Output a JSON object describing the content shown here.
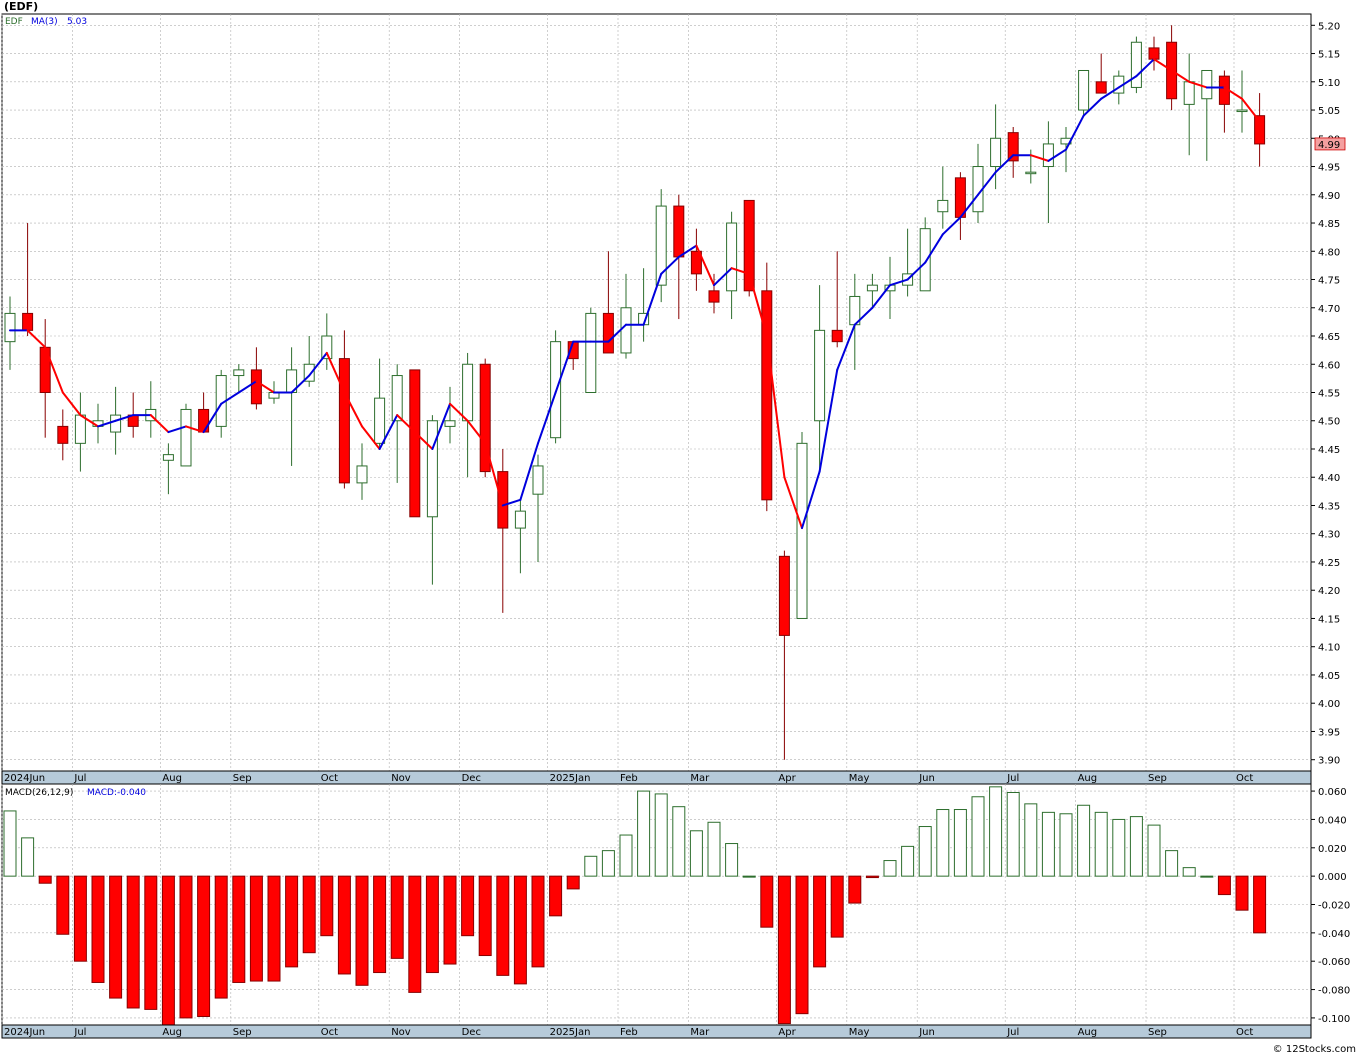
{
  "title": "(EDF)",
  "credit": "© 12Stocks.com",
  "colors": {
    "up": "#2d6e2d",
    "down": "#ff0000",
    "ma_up": "#0000dd",
    "ma_down": "#ff0000",
    "grid": "#b0b0b0",
    "axis_bg": "#b6cad9",
    "price_badge": "#f4a0a0"
  },
  "chart_data": [
    {
      "type": "candlestick",
      "symbol_label": "EDF",
      "ma_label": "MA(3)",
      "ma_value": "5.03",
      "last_price_label": "4.99",
      "ylim": [
        3.88,
        5.22
      ],
      "y_ticks": [
        "5.20",
        "5.15",
        "5.10",
        "5.05",
        "5.00",
        "4.95",
        "4.90",
        "4.85",
        "4.80",
        "4.75",
        "4.70",
        "4.65",
        "4.60",
        "4.55",
        "4.50",
        "4.45",
        "4.40",
        "4.35",
        "4.30",
        "4.25",
        "4.20",
        "4.15",
        "4.10",
        "4.05",
        "4.00",
        "3.95",
        "3.90"
      ],
      "x_labels": [
        {
          "label": "2024Jun",
          "week": 0
        },
        {
          "label": "Jul",
          "week": 4
        },
        {
          "label": "Aug",
          "week": 9
        },
        {
          "label": "Sep",
          "week": 13
        },
        {
          "label": "Oct",
          "week": 18
        },
        {
          "label": "Nov",
          "week": 22
        },
        {
          "label": "Dec",
          "week": 26
        },
        {
          "label": "2025Jan",
          "week": 31
        },
        {
          "label": "Feb",
          "week": 35
        },
        {
          "label": "Mar",
          "week": 39
        },
        {
          "label": "Apr",
          "week": 44
        },
        {
          "label": "May",
          "week": 48
        },
        {
          "label": "Jun",
          "week": 52
        },
        {
          "label": "Jul",
          "week": 57
        },
        {
          "label": "Aug",
          "week": 61
        },
        {
          "label": "Sep",
          "week": 65
        },
        {
          "label": "Oct",
          "week": 70
        }
      ],
      "candles": [
        {
          "o": 4.64,
          "h": 4.72,
          "l": 4.59,
          "c": 4.69
        },
        {
          "o": 4.69,
          "h": 4.85,
          "l": 4.65,
          "c": 4.66
        },
        {
          "o": 4.63,
          "h": 4.68,
          "l": 4.47,
          "c": 4.55
        },
        {
          "o": 4.49,
          "h": 4.52,
          "l": 4.43,
          "c": 4.46
        },
        {
          "o": 4.46,
          "h": 4.55,
          "l": 4.41,
          "c": 4.51
        },
        {
          "o": 4.49,
          "h": 4.53,
          "l": 4.46,
          "c": 4.5
        },
        {
          "o": 4.48,
          "h": 4.56,
          "l": 4.44,
          "c": 4.51
        },
        {
          "o": 4.51,
          "h": 4.55,
          "l": 4.47,
          "c": 4.49
        },
        {
          "o": 4.5,
          "h": 4.57,
          "l": 4.47,
          "c": 4.52
        },
        {
          "o": 4.43,
          "h": 4.46,
          "l": 4.37,
          "c": 4.44
        },
        {
          "o": 4.42,
          "h": 4.53,
          "l": 4.42,
          "c": 4.52
        },
        {
          "o": 4.52,
          "h": 4.55,
          "l": 4.48,
          "c": 4.48
        },
        {
          "o": 4.49,
          "h": 4.59,
          "l": 4.47,
          "c": 4.58
        },
        {
          "o": 4.58,
          "h": 4.6,
          "l": 4.55,
          "c": 4.59
        },
        {
          "o": 4.59,
          "h": 4.63,
          "l": 4.52,
          "c": 4.53
        },
        {
          "o": 4.54,
          "h": 4.57,
          "l": 4.53,
          "c": 4.55
        },
        {
          "o": 4.55,
          "h": 4.63,
          "l": 4.42,
          "c": 4.59
        },
        {
          "o": 4.57,
          "h": 4.65,
          "l": 4.56,
          "c": 4.6
        },
        {
          "o": 4.61,
          "h": 4.69,
          "l": 4.59,
          "c": 4.65
        },
        {
          "o": 4.61,
          "h": 4.66,
          "l": 4.38,
          "c": 4.39
        },
        {
          "o": 4.39,
          "h": 4.46,
          "l": 4.36,
          "c": 4.42
        },
        {
          "o": 4.46,
          "h": 4.61,
          "l": 4.45,
          "c": 4.54
        },
        {
          "o": 4.5,
          "h": 4.6,
          "l": 4.39,
          "c": 4.58
        },
        {
          "o": 4.59,
          "h": 4.59,
          "l": 4.33,
          "c": 4.33
        },
        {
          "o": 4.33,
          "h": 4.51,
          "l": 4.21,
          "c": 4.5
        },
        {
          "o": 4.49,
          "h": 4.56,
          "l": 4.46,
          "c": 4.5
        },
        {
          "o": 4.5,
          "h": 4.62,
          "l": 4.4,
          "c": 4.6
        },
        {
          "o": 4.6,
          "h": 4.61,
          "l": 4.4,
          "c": 4.41
        },
        {
          "o": 4.41,
          "h": 4.45,
          "l": 4.16,
          "c": 4.31
        },
        {
          "o": 4.31,
          "h": 4.36,
          "l": 4.23,
          "c": 4.34
        },
        {
          "o": 4.37,
          "h": 4.44,
          "l": 4.25,
          "c": 4.42
        },
        {
          "o": 4.47,
          "h": 4.66,
          "l": 4.46,
          "c": 4.64
        },
        {
          "o": 4.64,
          "h": 4.64,
          "l": 4.59,
          "c": 4.61
        },
        {
          "o": 4.55,
          "h": 4.7,
          "l": 4.55,
          "c": 4.69
        },
        {
          "o": 4.69,
          "h": 4.8,
          "l": 4.62,
          "c": 4.62
        },
        {
          "o": 4.62,
          "h": 4.76,
          "l": 4.61,
          "c": 4.7
        },
        {
          "o": 4.67,
          "h": 4.77,
          "l": 4.64,
          "c": 4.69
        },
        {
          "o": 4.74,
          "h": 4.91,
          "l": 4.71,
          "c": 4.88
        },
        {
          "o": 4.88,
          "h": 4.9,
          "l": 4.68,
          "c": 4.79
        },
        {
          "o": 4.8,
          "h": 4.84,
          "l": 4.73,
          "c": 4.76
        },
        {
          "o": 4.73,
          "h": 4.76,
          "l": 4.69,
          "c": 4.71
        },
        {
          "o": 4.73,
          "h": 4.87,
          "l": 4.68,
          "c": 4.85
        },
        {
          "o": 4.89,
          "h": 4.89,
          "l": 4.72,
          "c": 4.73
        },
        {
          "o": 4.73,
          "h": 4.78,
          "l": 4.34,
          "c": 4.36
        },
        {
          "o": 4.26,
          "h": 4.27,
          "l": 3.9,
          "c": 4.12
        },
        {
          "o": 4.15,
          "h": 4.48,
          "l": 4.15,
          "c": 4.46
        },
        {
          "o": 4.5,
          "h": 4.74,
          "l": 4.41,
          "c": 4.66
        },
        {
          "o": 4.66,
          "h": 4.8,
          "l": 4.63,
          "c": 4.64
        },
        {
          "o": 4.67,
          "h": 4.76,
          "l": 4.59,
          "c": 4.72
        },
        {
          "o": 4.73,
          "h": 4.76,
          "l": 4.7,
          "c": 4.74
        },
        {
          "o": 4.73,
          "h": 4.79,
          "l": 4.68,
          "c": 4.74
        },
        {
          "o": 4.74,
          "h": 4.84,
          "l": 4.72,
          "c": 4.76
        },
        {
          "o": 4.73,
          "h": 4.86,
          "l": 4.73,
          "c": 4.84
        },
        {
          "o": 4.87,
          "h": 4.95,
          "l": 4.84,
          "c": 4.89
        },
        {
          "o": 4.93,
          "h": 4.94,
          "l": 4.82,
          "c": 4.86
        },
        {
          "o": 4.87,
          "h": 4.99,
          "l": 4.85,
          "c": 4.95
        },
        {
          "o": 4.95,
          "h": 5.06,
          "l": 4.91,
          "c": 5.0
        },
        {
          "o": 5.01,
          "h": 5.02,
          "l": 4.93,
          "c": 4.96
        },
        {
          "o": 4.94,
          "h": 4.98,
          "l": 4.92,
          "c": 4.94
        },
        {
          "o": 4.95,
          "h": 5.03,
          "l": 4.85,
          "c": 4.99
        },
        {
          "o": 4.99,
          "h": 5.02,
          "l": 4.94,
          "c": 5.0
        },
        {
          "o": 5.05,
          "h": 5.11,
          "l": 5.04,
          "c": 5.12
        },
        {
          "o": 5.1,
          "h": 5.15,
          "l": 5.08,
          "c": 5.08
        },
        {
          "o": 5.08,
          "h": 5.12,
          "l": 5.06,
          "c": 5.11
        },
        {
          "o": 5.09,
          "h": 5.18,
          "l": 5.08,
          "c": 5.17
        },
        {
          "o": 5.16,
          "h": 5.18,
          "l": 5.12,
          "c": 5.14
        },
        {
          "o": 5.17,
          "h": 5.2,
          "l": 5.05,
          "c": 5.07
        },
        {
          "o": 5.06,
          "h": 5.15,
          "l": 4.97,
          "c": 5.1
        },
        {
          "o": 5.07,
          "h": 5.12,
          "l": 4.96,
          "c": 5.12
        },
        {
          "o": 5.11,
          "h": 5.12,
          "l": 5.01,
          "c": 5.06
        },
        {
          "o": 5.05,
          "h": 5.12,
          "l": 5.01,
          "c": 5.05
        },
        {
          "o": 5.04,
          "h": 5.08,
          "l": 4.95,
          "c": 4.99
        }
      ],
      "ma": [
        4.66,
        4.66,
        4.63,
        4.55,
        4.51,
        4.49,
        4.5,
        4.51,
        4.51,
        4.48,
        4.49,
        4.48,
        4.53,
        4.55,
        4.57,
        4.55,
        4.55,
        4.58,
        4.62,
        4.55,
        4.49,
        4.45,
        4.51,
        4.48,
        4.45,
        4.53,
        4.5,
        4.46,
        4.35,
        4.36,
        4.46,
        4.55,
        4.64,
        4.64,
        4.64,
        4.67,
        4.67,
        4.76,
        4.79,
        4.81,
        4.74,
        4.77,
        4.76,
        4.65,
        4.4,
        4.31,
        4.41,
        4.59,
        4.67,
        4.7,
        4.74,
        4.75,
        4.78,
        4.83,
        4.86,
        4.9,
        4.94,
        4.97,
        4.97,
        4.96,
        4.98,
        5.04,
        5.07,
        5.09,
        5.11,
        5.14,
        5.12,
        5.1,
        5.09,
        5.09,
        5.07,
        5.03
      ]
    },
    {
      "type": "bar",
      "indicator_label": "MACD(26,12,9)",
      "value_label": "MACD:-0.040",
      "ylim": [
        -0.105,
        0.065
      ],
      "y_ticks": [
        "0.060",
        "0.040",
        "0.020",
        "0.000",
        "-0.020",
        "-0.040",
        "-0.060",
        "-0.080",
        "-0.100"
      ],
      "values": [
        0.046,
        0.027,
        -0.005,
        -0.041,
        -0.06,
        -0.075,
        -0.086,
        -0.093,
        -0.094,
        -0.105,
        -0.1,
        -0.099,
        -0.086,
        -0.075,
        -0.074,
        -0.074,
        -0.064,
        -0.054,
        -0.042,
        -0.069,
        -0.077,
        -0.068,
        -0.058,
        -0.082,
        -0.068,
        -0.062,
        -0.042,
        -0.056,
        -0.07,
        -0.076,
        -0.064,
        -0.028,
        -0.009,
        0.014,
        0.018,
        0.029,
        0.06,
        0.058,
        0.049,
        0.032,
        0.038,
        0.023,
        0.0,
        -0.036,
        -0.104,
        -0.097,
        -0.064,
        -0.043,
        -0.019,
        -0.001,
        0.011,
        0.021,
        0.035,
        0.047,
        0.047,
        0.056,
        0.063,
        0.059,
        0.051,
        0.045,
        0.044,
        0.05,
        0.045,
        0.04,
        0.042,
        0.036,
        0.018,
        0.006,
        0.0,
        -0.013,
        -0.024,
        -0.04
      ]
    }
  ]
}
